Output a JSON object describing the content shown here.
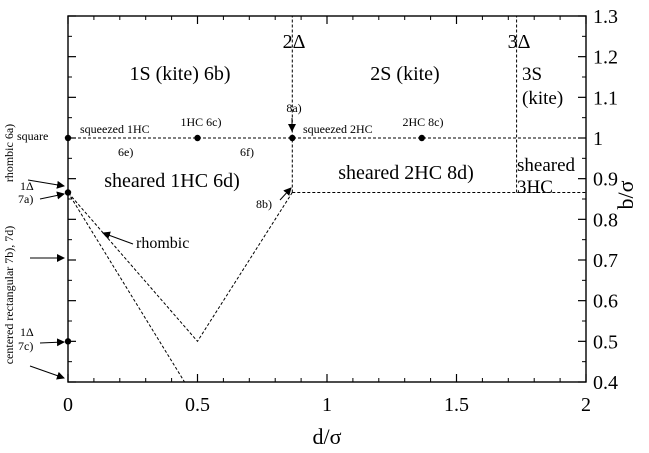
{
  "chart_data": {
    "type": "line",
    "xlabel": "d/σ",
    "ylabel": "b/σ",
    "xlim": [
      0,
      2
    ],
    "ylim": [
      0.4,
      1.3
    ],
    "x_ticks": [
      0,
      0.5,
      1,
      1.5,
      2
    ],
    "y_ticks": [
      0.4,
      0.5,
      0.6,
      0.7,
      0.8,
      0.9,
      1,
      1.1,
      1.2,
      1.3
    ],
    "x_tick_labels": [
      "0",
      "0.5",
      "1",
      "1.5",
      "2"
    ],
    "y_tick_labels": [
      "0.4",
      "0.5",
      "0.6",
      "0.7",
      "0.8",
      "0.9",
      "1",
      "1.1",
      "1.2",
      "1.3"
    ],
    "grid": false,
    "boundaries": [
      {
        "style": "dashed",
        "x": [
          0,
          2
        ],
        "y": [
          1,
          1
        ]
      },
      {
        "style": "dashed",
        "x": [
          0.866,
          0.866
        ],
        "y": [
          0.866,
          1.3
        ]
      },
      {
        "style": "dashed",
        "x": [
          1.732,
          1.732
        ],
        "y": [
          0.866,
          1.3
        ]
      },
      {
        "style": "dashed",
        "x": [
          0.866,
          2
        ],
        "y": [
          0.866,
          0.866
        ]
      },
      {
        "style": "dashed",
        "x": [
          0.866,
          0.5,
          0
        ],
        "y": [
          0.866,
          0.5,
          0.866
        ]
      },
      {
        "style": "dashed",
        "x": [
          0,
          0.45
        ],
        "y": [
          0.866,
          0.4
        ]
      }
    ],
    "points": [
      {
        "name": "square",
        "x": 0,
        "y": 1
      },
      {
        "name": "1HC 6c)",
        "x": 0.5,
        "y": 1
      },
      {
        "name": "8a)",
        "x": 0.866,
        "y": 1
      },
      {
        "name": "2HC 8c)",
        "x": 1.366,
        "y": 1
      },
      {
        "name": "1Δ 7a)",
        "x": 0,
        "y": 0.866
      },
      {
        "name": "1Δ 7c)",
        "x": 0,
        "y": 0.5
      }
    ],
    "region_labels": [
      "1S (kite) 6b)",
      "2S (kite)",
      "3S",
      "(kite)",
      "sheared 1HC 6d)",
      "sheared 2HC 8d)",
      "sheared",
      "3HC"
    ],
    "top_markers": [
      "2Δ",
      "3Δ"
    ],
    "annotations": [
      "squeezed 1HC",
      "squeezed 2HC",
      "6e)",
      "6f)",
      "8b)",
      "rhombic"
    ],
    "side_labels": [
      "square",
      "rhombic 6a)",
      "1Δ",
      "7a)",
      "centered rectangular 7b), 7d)",
      "1Δ",
      "7c)"
    ]
  }
}
